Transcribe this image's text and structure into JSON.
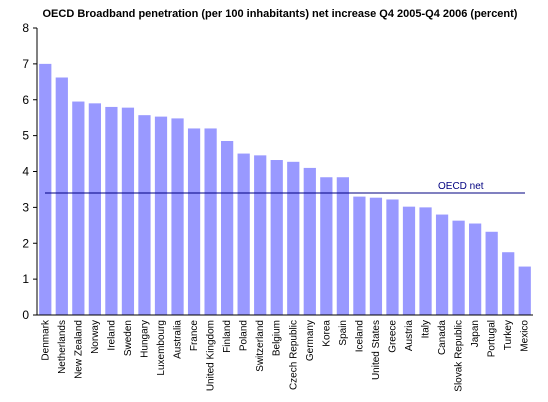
{
  "chart_data": {
    "type": "bar",
    "title": "OECD Broadband penetration (per 100 inhabitants) net increase Q4 2005-Q4 2006 (percent)",
    "xlabel": "",
    "ylabel": "",
    "ylim": [
      0,
      8
    ],
    "yticks": [
      0,
      1,
      2,
      3,
      4,
      5,
      6,
      7,
      8
    ],
    "categories": [
      "Denmark",
      "Netherlands",
      "New Zealand",
      "Norway",
      "Ireland",
      "Sweden",
      "Hungary",
      "Luxembourg",
      "Australia",
      "France",
      "United Kingdom",
      "Finland",
      "Poland",
      "Switzerland",
      "Belgium",
      "Czech Republic",
      "Germany",
      "Korea",
      "Spain",
      "Iceland",
      "United States",
      "Greece",
      "Austria",
      "Italy",
      "Canada",
      "Slovak Republic",
      "Japan",
      "Portugal",
      "Turkey",
      "Mexico"
    ],
    "values": [
      7.0,
      6.62,
      5.95,
      5.9,
      5.8,
      5.78,
      5.57,
      5.53,
      5.48,
      5.2,
      5.2,
      4.85,
      4.5,
      4.45,
      4.32,
      4.27,
      4.1,
      3.84,
      3.84,
      3.3,
      3.27,
      3.22,
      3.02,
      3.0,
      2.8,
      2.63,
      2.55,
      2.32,
      1.75,
      1.35
    ],
    "bar_color": "#9999ff",
    "reference_line": {
      "label": "OECD net",
      "value": 3.4,
      "label_color": "#000080",
      "line_color": "#000080"
    },
    "grid": false,
    "legend": "none"
  }
}
